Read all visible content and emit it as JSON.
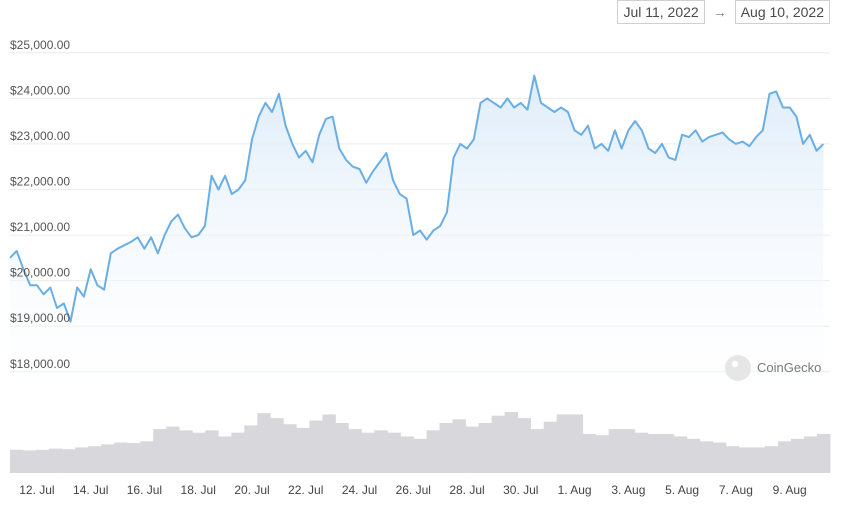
{
  "date_range": {
    "start": "Jul 11, 2022",
    "arrow": "→",
    "end": "Aug 10, 2022"
  },
  "watermark": "CoinGecko",
  "colors": {
    "line": "#6aaee6",
    "area_top": "#dcebf9",
    "volume": "#d8d8dc",
    "grid": "#ececec"
  },
  "chart_data": {
    "type": "line",
    "title": "",
    "xlabel": "",
    "ylabel": "",
    "ylim": [
      17600,
      25500
    ],
    "y_ticks": [
      {
        "value": 25000,
        "label": "$25,000.00"
      },
      {
        "value": 24000,
        "label": "$24,000.00"
      },
      {
        "value": 23000,
        "label": "$23,000.00"
      },
      {
        "value": 22000,
        "label": "$22,000.00"
      },
      {
        "value": 21000,
        "label": "$21,000.00"
      },
      {
        "value": 20000,
        "label": "$20,000.00"
      },
      {
        "value": 19000,
        "label": "$19,000.00"
      },
      {
        "value": 18000,
        "label": "$18,000.00"
      }
    ],
    "x_range_days": [
      "2022-07-11",
      "2022-08-10"
    ],
    "x_ticks": [
      {
        "date": "2022-07-12",
        "label": "12. Jul"
      },
      {
        "date": "2022-07-14",
        "label": "14. Jul"
      },
      {
        "date": "2022-07-16",
        "label": "16. Jul"
      },
      {
        "date": "2022-07-18",
        "label": "18. Jul"
      },
      {
        "date": "2022-07-20",
        "label": "20. Jul"
      },
      {
        "date": "2022-07-22",
        "label": "22. Jul"
      },
      {
        "date": "2022-07-24",
        "label": "24. Jul"
      },
      {
        "date": "2022-07-26",
        "label": "26. Jul"
      },
      {
        "date": "2022-07-28",
        "label": "28. Jul"
      },
      {
        "date": "2022-07-30",
        "label": "30. Jul"
      },
      {
        "date": "2022-08-01",
        "label": "1. Aug"
      },
      {
        "date": "2022-08-03",
        "label": "3. Aug"
      },
      {
        "date": "2022-08-05",
        "label": "5. Aug"
      },
      {
        "date": "2022-08-07",
        "label": "7. Aug"
      },
      {
        "date": "2022-08-09",
        "label": "9. Aug"
      }
    ],
    "series": [
      {
        "points": [
          [
            "2022-07-11 00:00",
            20500
          ],
          [
            "2022-07-11 06:00",
            20650
          ],
          [
            "2022-07-11 12:00",
            20250
          ],
          [
            "2022-07-11 18:00",
            19900
          ],
          [
            "2022-07-12 00:00",
            19900
          ],
          [
            "2022-07-12 06:00",
            19700
          ],
          [
            "2022-07-12 12:00",
            19850
          ],
          [
            "2022-07-12 18:00",
            19400
          ],
          [
            "2022-07-13 00:00",
            19500
          ],
          [
            "2022-07-13 06:00",
            19100
          ],
          [
            "2022-07-13 12:00",
            19850
          ],
          [
            "2022-07-13 18:00",
            19650
          ],
          [
            "2022-07-14 00:00",
            20250
          ],
          [
            "2022-07-14 06:00",
            19900
          ],
          [
            "2022-07-14 12:00",
            19800
          ],
          [
            "2022-07-14 18:00",
            20600
          ],
          [
            "2022-07-15 00:00",
            20700
          ],
          [
            "2022-07-15 12:00",
            20850
          ],
          [
            "2022-07-15 18:00",
            20950
          ],
          [
            "2022-07-16 00:00",
            20700
          ],
          [
            "2022-07-16 06:00",
            20950
          ],
          [
            "2022-07-16 12:00",
            20600
          ],
          [
            "2022-07-16 18:00",
            21000
          ],
          [
            "2022-07-17 00:00",
            21300
          ],
          [
            "2022-07-17 06:00",
            21450
          ],
          [
            "2022-07-17 12:00",
            21150
          ],
          [
            "2022-07-17 18:00",
            20950
          ],
          [
            "2022-07-18 00:00",
            21000
          ],
          [
            "2022-07-18 06:00",
            21200
          ],
          [
            "2022-07-18 12:00",
            22300
          ],
          [
            "2022-07-18 18:00",
            22000
          ],
          [
            "2022-07-19 00:00",
            22300
          ],
          [
            "2022-07-19 06:00",
            21900
          ],
          [
            "2022-07-19 12:00",
            22000
          ],
          [
            "2022-07-19 18:00",
            22200
          ],
          [
            "2022-07-20 00:00",
            23100
          ],
          [
            "2022-07-20 06:00",
            23600
          ],
          [
            "2022-07-20 12:00",
            23900
          ],
          [
            "2022-07-20 18:00",
            23700
          ],
          [
            "2022-07-21 00:00",
            24100
          ],
          [
            "2022-07-21 06:00",
            23400
          ],
          [
            "2022-07-21 12:00",
            23000
          ],
          [
            "2022-07-21 18:00",
            22700
          ],
          [
            "2022-07-22 00:00",
            22850
          ],
          [
            "2022-07-22 06:00",
            22600
          ],
          [
            "2022-07-22 12:00",
            23200
          ],
          [
            "2022-07-22 18:00",
            23550
          ],
          [
            "2022-07-23 00:00",
            23600
          ],
          [
            "2022-07-23 06:00",
            22900
          ],
          [
            "2022-07-23 12:00",
            22650
          ],
          [
            "2022-07-23 18:00",
            22500
          ],
          [
            "2022-07-24 00:00",
            22450
          ],
          [
            "2022-07-24 06:00",
            22150
          ],
          [
            "2022-07-24 12:00",
            22400
          ],
          [
            "2022-07-24 18:00",
            22600
          ],
          [
            "2022-07-25 00:00",
            22800
          ],
          [
            "2022-07-25 06:00",
            22200
          ],
          [
            "2022-07-25 12:00",
            21900
          ],
          [
            "2022-07-25 18:00",
            21800
          ],
          [
            "2022-07-26 00:00",
            21000
          ],
          [
            "2022-07-26 06:00",
            21100
          ],
          [
            "2022-07-26 12:00",
            20900
          ],
          [
            "2022-07-26 18:00",
            21100
          ],
          [
            "2022-07-27 00:00",
            21200
          ],
          [
            "2022-07-27 06:00",
            21500
          ],
          [
            "2022-07-27 12:00",
            22700
          ],
          [
            "2022-07-27 18:00",
            23000
          ],
          [
            "2022-07-28 00:00",
            22900
          ],
          [
            "2022-07-28 06:00",
            23100
          ],
          [
            "2022-07-28 12:00",
            23900
          ],
          [
            "2022-07-28 18:00",
            24000
          ],
          [
            "2022-07-29 00:00",
            23900
          ],
          [
            "2022-07-29 06:00",
            23800
          ],
          [
            "2022-07-29 12:00",
            24000
          ],
          [
            "2022-07-29 18:00",
            23800
          ],
          [
            "2022-07-30 00:00",
            23900
          ],
          [
            "2022-07-30 06:00",
            23750
          ],
          [
            "2022-07-30 12:00",
            24500
          ],
          [
            "2022-07-30 18:00",
            23900
          ],
          [
            "2022-07-31 00:00",
            23800
          ],
          [
            "2022-07-31 06:00",
            23700
          ],
          [
            "2022-07-31 12:00",
            23800
          ],
          [
            "2022-07-31 18:00",
            23700
          ],
          [
            "2022-08-01 00:00",
            23300
          ],
          [
            "2022-08-01 06:00",
            23200
          ],
          [
            "2022-08-01 12:00",
            23400
          ],
          [
            "2022-08-01 18:00",
            22900
          ],
          [
            "2022-08-02 00:00",
            23000
          ],
          [
            "2022-08-02 06:00",
            22850
          ],
          [
            "2022-08-02 12:00",
            23300
          ],
          [
            "2022-08-02 18:00",
            22900
          ],
          [
            "2022-08-03 00:00",
            23300
          ],
          [
            "2022-08-03 06:00",
            23500
          ],
          [
            "2022-08-03 12:00",
            23300
          ],
          [
            "2022-08-03 18:00",
            22900
          ],
          [
            "2022-08-04 00:00",
            22800
          ],
          [
            "2022-08-04 06:00",
            23000
          ],
          [
            "2022-08-04 12:00",
            22700
          ],
          [
            "2022-08-04 18:00",
            22650
          ],
          [
            "2022-08-05 00:00",
            23200
          ],
          [
            "2022-08-05 06:00",
            23150
          ],
          [
            "2022-08-05 12:00",
            23300
          ],
          [
            "2022-08-05 18:00",
            23050
          ],
          [
            "2022-08-06 00:00",
            23150
          ],
          [
            "2022-08-06 06:00",
            23200
          ],
          [
            "2022-08-06 12:00",
            23250
          ],
          [
            "2022-08-06 18:00",
            23100
          ],
          [
            "2022-08-07 00:00",
            23000
          ],
          [
            "2022-08-07 06:00",
            23050
          ],
          [
            "2022-08-07 12:00",
            22950
          ],
          [
            "2022-08-07 18:00",
            23150
          ],
          [
            "2022-08-08 00:00",
            23300
          ],
          [
            "2022-08-08 06:00",
            24100
          ],
          [
            "2022-08-08 12:00",
            24150
          ],
          [
            "2022-08-08 18:00",
            23800
          ],
          [
            "2022-08-09 00:00",
            23800
          ],
          [
            "2022-08-09 06:00",
            23600
          ],
          [
            "2022-08-09 12:00",
            23000
          ],
          [
            "2022-08-09 18:00",
            23200
          ],
          [
            "2022-08-10 00:00",
            22850
          ],
          [
            "2022-08-10 06:00",
            23000
          ]
        ]
      }
    ],
    "volume": [
      0.38,
      0.37,
      0.38,
      0.4,
      0.39,
      0.42,
      0.44,
      0.47,
      0.5,
      0.49,
      0.52,
      0.72,
      0.76,
      0.7,
      0.66,
      0.7,
      0.6,
      0.66,
      0.78,
      0.98,
      0.9,
      0.8,
      0.74,
      0.86,
      0.96,
      0.82,
      0.72,
      0.66,
      0.7,
      0.66,
      0.6,
      0.56,
      0.7,
      0.82,
      0.88,
      0.76,
      0.82,
      0.94,
      1.0,
      0.9,
      0.72,
      0.84,
      0.96,
      0.96,
      0.64,
      0.62,
      0.72,
      0.72,
      0.66,
      0.64,
      0.64,
      0.6,
      0.56,
      0.52,
      0.5,
      0.44,
      0.42,
      0.42,
      0.44,
      0.52,
      0.56,
      0.6,
      0.64
    ]
  }
}
